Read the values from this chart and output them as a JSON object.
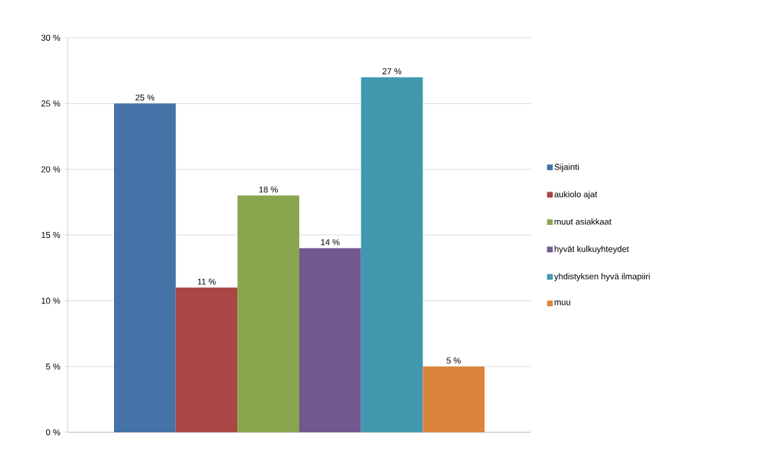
{
  "chart_data": {
    "type": "bar",
    "categories": [
      null
    ],
    "series": [
      {
        "name": "Sijainti",
        "color": "#4572a7",
        "values": [
          25
        ],
        "value_labels": [
          "25 %"
        ]
      },
      {
        "name": "aukiolo ajat",
        "color": "#aa4643",
        "values": [
          11
        ],
        "value_labels": [
          "11 %"
        ]
      },
      {
        "name": "muut asiakkaat",
        "color": "#89a54e",
        "values": [
          18
        ],
        "value_labels": [
          "18 %"
        ]
      },
      {
        "name": "hyvät kulkuyhteydet",
        "color": "#71588f",
        "values": [
          14
        ],
        "value_labels": [
          "14 %"
        ]
      },
      {
        "name": "yhdistyksen hyvä ilmapiiri",
        "color": "#4198af",
        "values": [
          27
        ],
        "value_labels": [
          "27 %"
        ]
      },
      {
        "name": "muu",
        "color": "#db843d",
        "values": [
          5
        ],
        "value_labels": [
          "5 %"
        ]
      }
    ],
    "ylim": [
      0,
      30
    ],
    "yticks": [
      {
        "value": 0,
        "label": "0 %"
      },
      {
        "value": 5,
        "label": "5 %"
      },
      {
        "value": 10,
        "label": "10 %"
      },
      {
        "value": 15,
        "label": "15 %"
      },
      {
        "value": 20,
        "label": "20 %"
      },
      {
        "value": 25,
        "label": "25 %"
      },
      {
        "value": 30,
        "label": "30 %"
      }
    ],
    "grid": "y",
    "legend": "right"
  }
}
